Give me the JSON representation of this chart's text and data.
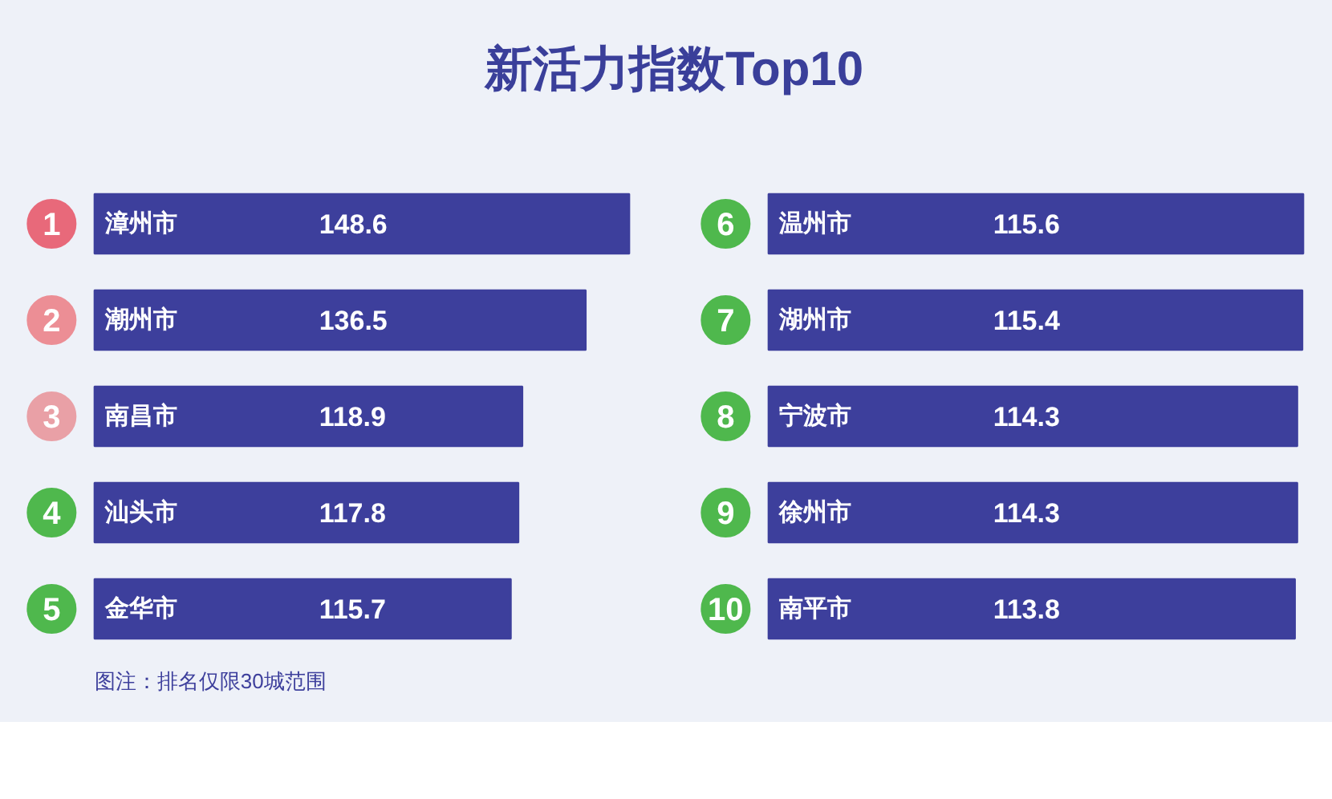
{
  "chart_data": [
    {
      "type": "bar",
      "orientation": "horizontal",
      "title": "新活力指数Top10",
      "categories": [
        "漳州市",
        "潮州市",
        "南昌市",
        "汕头市",
        "金华市"
      ],
      "values": [
        148.6,
        136.5,
        118.9,
        117.8,
        115.7
      ],
      "color": "#3d3f9c",
      "data_labels": true,
      "tick_labels": false,
      "grid": false,
      "legend": false,
      "annotations": [
        "1",
        "2",
        "3",
        "4",
        "5",
        "图注：排名仅限30城范围"
      ]
    },
    {
      "type": "bar",
      "orientation": "horizontal",
      "categories": [
        "温州市",
        "湖州市",
        "宁波市",
        "徐州市",
        "南平市"
      ],
      "values": [
        115.6,
        115.4,
        114.3,
        114.3,
        113.8
      ],
      "color": "#3d3f9c",
      "data_labels": true,
      "tick_labels": false,
      "grid": false,
      "legend": false,
      "annotations": [
        "6",
        "7",
        "8",
        "9",
        "10"
      ]
    }
  ]
}
